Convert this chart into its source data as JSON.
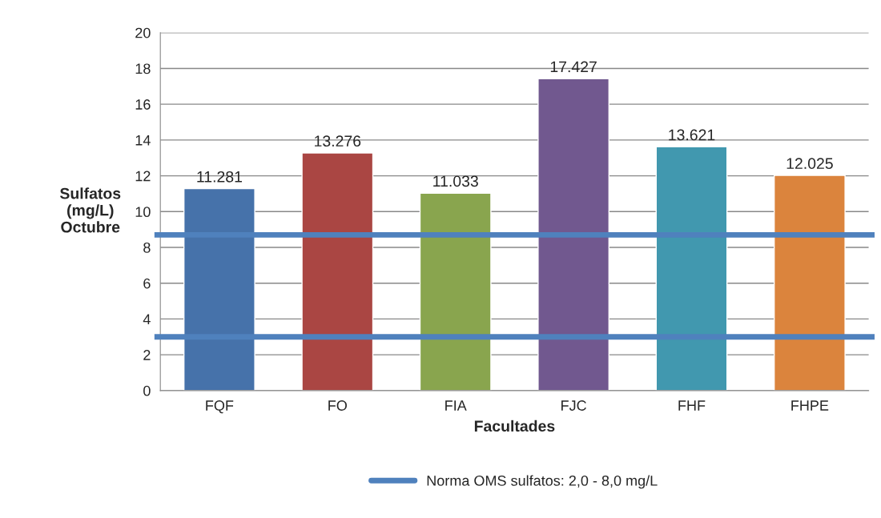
{
  "chart_data": {
    "type": "bar",
    "xlabel": "Facultades",
    "ylabel": "Sulfatos\n(mg/L)\nOctubre",
    "categories": [
      "FQF",
      "FO",
      "FIA",
      "FJC",
      "FHF",
      "FHPE"
    ],
    "series": [
      {
        "colors": [
          "#4672aa",
          "#aa4643",
          "#89a54e",
          "#71588f",
          "#4198af",
          "#db843d"
        ],
        "values": [
          11.281,
          13.276,
          11.033,
          17.427,
          13.621,
          12.025
        ],
        "value_labels": [
          "11.281",
          "13.276",
          "11.033",
          "17.427",
          "13.621",
          "12.025"
        ]
      },
      {
        "type": "line",
        "name": "Norma OMS sulfatos: 2,0 - 8,0 mg/L",
        "color": "#4f81bd",
        "values": [
          8.7,
          8.7,
          8.7,
          8.7,
          8.7,
          8.7
        ]
      },
      {
        "type": "line",
        "color": "#4f81bd",
        "values": [
          3.0,
          3.0,
          3.0,
          3.0,
          3.0,
          3.0
        ]
      }
    ],
    "ylim": [
      0,
      20
    ],
    "yticks": [
      0,
      2,
      4,
      6,
      8,
      10,
      12,
      14,
      16,
      18,
      20
    ],
    "grid": "y",
    "legend": "bottom"
  }
}
